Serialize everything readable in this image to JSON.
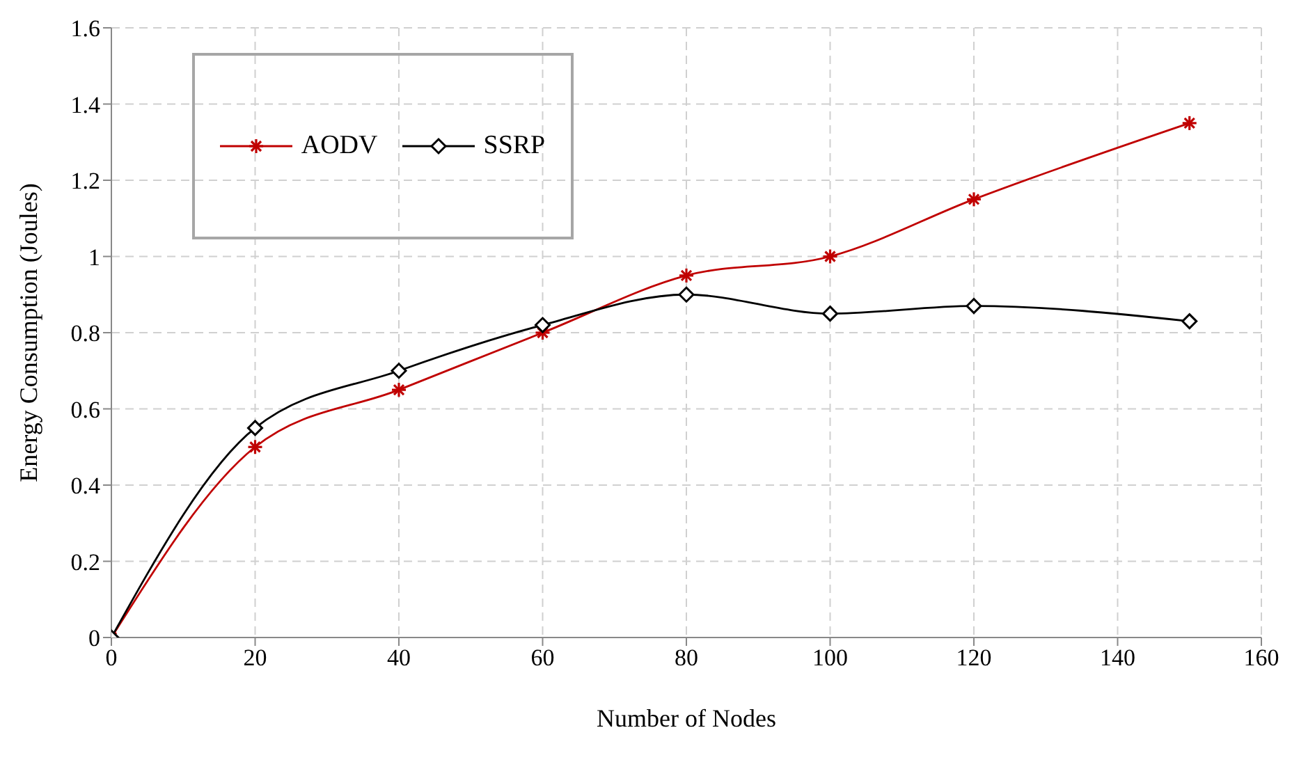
{
  "chart_data": {
    "type": "line",
    "xlabel": "Number of Nodes",
    "ylabel": "Energy Consumption (Joules)",
    "x": [
      0,
      20,
      40,
      60,
      80,
      100,
      120,
      150
    ],
    "series": [
      {
        "name": "AODV",
        "color": "#c00000",
        "marker": "cross",
        "values": [
          0,
          0.5,
          0.65,
          0.8,
          0.95,
          1.0,
          1.15,
          1.35
        ]
      },
      {
        "name": "SSRP",
        "color": "#000000",
        "marker": "diamond",
        "values": [
          0,
          0.55,
          0.7,
          0.82,
          0.9,
          0.85,
          0.87,
          0.83
        ]
      }
    ],
    "xlim": [
      0,
      160
    ],
    "xticks": [
      0,
      20,
      40,
      60,
      80,
      100,
      120,
      140,
      160
    ],
    "ylim": [
      0,
      1.6
    ],
    "yticks": [
      0,
      0.2,
      0.4,
      0.6,
      0.8,
      1,
      1.2,
      1.4,
      1.6
    ],
    "grid": true,
    "legend": "top left"
  }
}
